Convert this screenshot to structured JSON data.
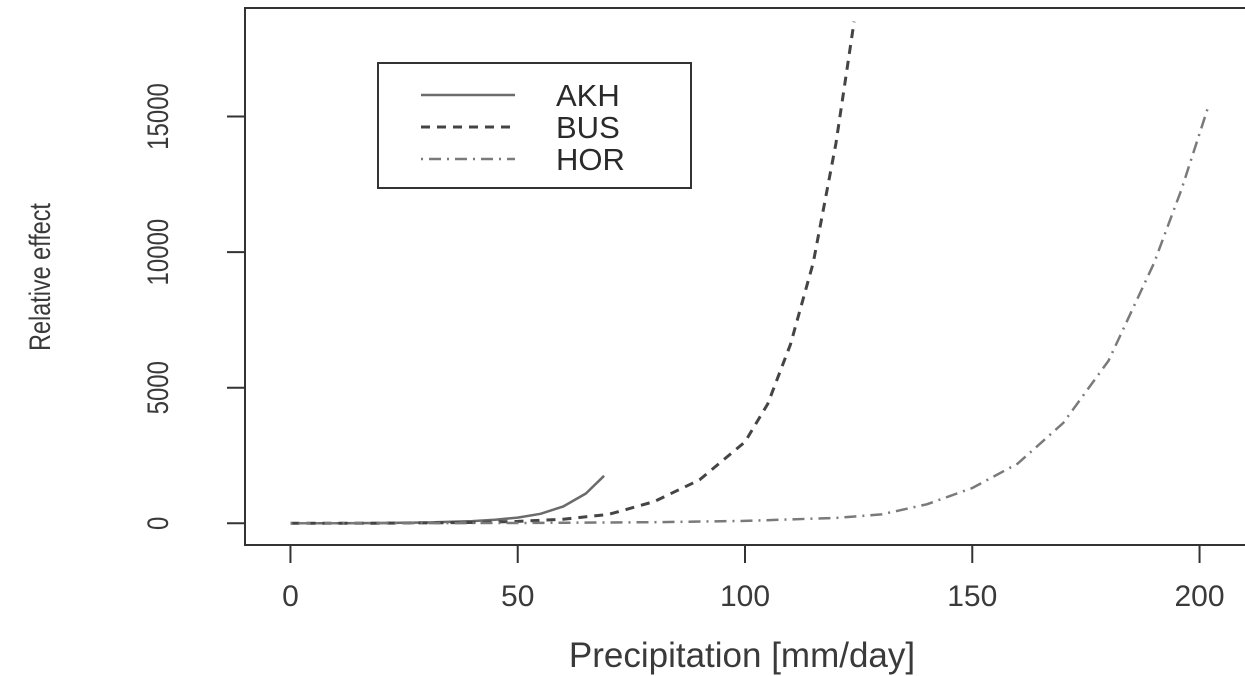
{
  "chart_data": {
    "type": "line",
    "title": "",
    "xlabel": "Precipitation [mm/day]",
    "ylabel": "Relative effect",
    "xlim": [
      -10,
      210
    ],
    "ylim": [
      -800,
      19000
    ],
    "x_ticks": [
      0,
      50,
      100,
      150,
      200
    ],
    "y_ticks": [
      0,
      5000,
      10000,
      15000
    ],
    "grid": false,
    "legend": {
      "position": "top-left"
    },
    "series": [
      {
        "name": "AKH",
        "line_style": "solid",
        "color": "#6b6b6b",
        "x": [
          0,
          10,
          20,
          30,
          40,
          45,
          50,
          55,
          60,
          65,
          69
        ],
        "y": [
          0,
          2,
          10,
          30,
          80,
          130,
          210,
          350,
          620,
          1100,
          1750
        ]
      },
      {
        "name": "BUS",
        "line_style": "dashed",
        "color": "#444444",
        "x": [
          0,
          20,
          40,
          50,
          60,
          70,
          80,
          90,
          100,
          105,
          110,
          115,
          120,
          124
        ],
        "y": [
          0,
          5,
          30,
          70,
          150,
          330,
          800,
          1600,
          3000,
          4400,
          6600,
          9600,
          14000,
          18500
        ]
      },
      {
        "name": "HOR",
        "line_style": "dotdash",
        "color": "#7a7a7a",
        "x": [
          0,
          50,
          80,
          100,
          120,
          130,
          140,
          150,
          160,
          170,
          180,
          190,
          196,
          202
        ],
        "y": [
          0,
          10,
          40,
          90,
          200,
          330,
          700,
          1300,
          2200,
          3700,
          6000,
          9600,
          12300,
          15400
        ]
      }
    ]
  }
}
